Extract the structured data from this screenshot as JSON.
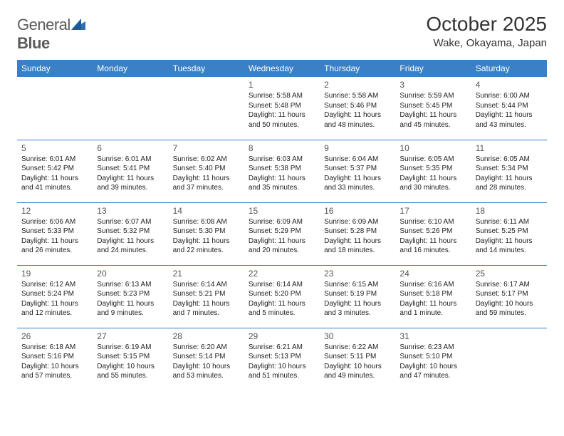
{
  "logo": {
    "word1": "General",
    "word2": "Blue"
  },
  "title": "October 2025",
  "location": "Wake, Okayama, Japan",
  "colors": {
    "header_bg": "#3b7fc4",
    "header_text": "#ffffff",
    "border": "#3b7fc4",
    "text": "#222222",
    "logo_text": "#5a5a5a",
    "logo_mark": "#2f6fb0"
  },
  "weekdays": [
    "Sunday",
    "Monday",
    "Tuesday",
    "Wednesday",
    "Thursday",
    "Friday",
    "Saturday"
  ],
  "weeks": [
    [
      null,
      null,
      null,
      {
        "n": "1",
        "sr": "Sunrise: 5:58 AM",
        "ss": "Sunset: 5:48 PM",
        "dl": "Daylight: 11 hours and 50 minutes."
      },
      {
        "n": "2",
        "sr": "Sunrise: 5:58 AM",
        "ss": "Sunset: 5:46 PM",
        "dl": "Daylight: 11 hours and 48 minutes."
      },
      {
        "n": "3",
        "sr": "Sunrise: 5:59 AM",
        "ss": "Sunset: 5:45 PM",
        "dl": "Daylight: 11 hours and 45 minutes."
      },
      {
        "n": "4",
        "sr": "Sunrise: 6:00 AM",
        "ss": "Sunset: 5:44 PM",
        "dl": "Daylight: 11 hours and 43 minutes."
      }
    ],
    [
      {
        "n": "5",
        "sr": "Sunrise: 6:01 AM",
        "ss": "Sunset: 5:42 PM",
        "dl": "Daylight: 11 hours and 41 minutes."
      },
      {
        "n": "6",
        "sr": "Sunrise: 6:01 AM",
        "ss": "Sunset: 5:41 PM",
        "dl": "Daylight: 11 hours and 39 minutes."
      },
      {
        "n": "7",
        "sr": "Sunrise: 6:02 AM",
        "ss": "Sunset: 5:40 PM",
        "dl": "Daylight: 11 hours and 37 minutes."
      },
      {
        "n": "8",
        "sr": "Sunrise: 6:03 AM",
        "ss": "Sunset: 5:38 PM",
        "dl": "Daylight: 11 hours and 35 minutes."
      },
      {
        "n": "9",
        "sr": "Sunrise: 6:04 AM",
        "ss": "Sunset: 5:37 PM",
        "dl": "Daylight: 11 hours and 33 minutes."
      },
      {
        "n": "10",
        "sr": "Sunrise: 6:05 AM",
        "ss": "Sunset: 5:35 PM",
        "dl": "Daylight: 11 hours and 30 minutes."
      },
      {
        "n": "11",
        "sr": "Sunrise: 6:05 AM",
        "ss": "Sunset: 5:34 PM",
        "dl": "Daylight: 11 hours and 28 minutes."
      }
    ],
    [
      {
        "n": "12",
        "sr": "Sunrise: 6:06 AM",
        "ss": "Sunset: 5:33 PM",
        "dl": "Daylight: 11 hours and 26 minutes."
      },
      {
        "n": "13",
        "sr": "Sunrise: 6:07 AM",
        "ss": "Sunset: 5:32 PM",
        "dl": "Daylight: 11 hours and 24 minutes."
      },
      {
        "n": "14",
        "sr": "Sunrise: 6:08 AM",
        "ss": "Sunset: 5:30 PM",
        "dl": "Daylight: 11 hours and 22 minutes."
      },
      {
        "n": "15",
        "sr": "Sunrise: 6:09 AM",
        "ss": "Sunset: 5:29 PM",
        "dl": "Daylight: 11 hours and 20 minutes."
      },
      {
        "n": "16",
        "sr": "Sunrise: 6:09 AM",
        "ss": "Sunset: 5:28 PM",
        "dl": "Daylight: 11 hours and 18 minutes."
      },
      {
        "n": "17",
        "sr": "Sunrise: 6:10 AM",
        "ss": "Sunset: 5:26 PM",
        "dl": "Daylight: 11 hours and 16 minutes."
      },
      {
        "n": "18",
        "sr": "Sunrise: 6:11 AM",
        "ss": "Sunset: 5:25 PM",
        "dl": "Daylight: 11 hours and 14 minutes."
      }
    ],
    [
      {
        "n": "19",
        "sr": "Sunrise: 6:12 AM",
        "ss": "Sunset: 5:24 PM",
        "dl": "Daylight: 11 hours and 12 minutes."
      },
      {
        "n": "20",
        "sr": "Sunrise: 6:13 AM",
        "ss": "Sunset: 5:23 PM",
        "dl": "Daylight: 11 hours and 9 minutes."
      },
      {
        "n": "21",
        "sr": "Sunrise: 6:14 AM",
        "ss": "Sunset: 5:21 PM",
        "dl": "Daylight: 11 hours and 7 minutes."
      },
      {
        "n": "22",
        "sr": "Sunrise: 6:14 AM",
        "ss": "Sunset: 5:20 PM",
        "dl": "Daylight: 11 hours and 5 minutes."
      },
      {
        "n": "23",
        "sr": "Sunrise: 6:15 AM",
        "ss": "Sunset: 5:19 PM",
        "dl": "Daylight: 11 hours and 3 minutes."
      },
      {
        "n": "24",
        "sr": "Sunrise: 6:16 AM",
        "ss": "Sunset: 5:18 PM",
        "dl": "Daylight: 11 hours and 1 minute."
      },
      {
        "n": "25",
        "sr": "Sunrise: 6:17 AM",
        "ss": "Sunset: 5:17 PM",
        "dl": "Daylight: 10 hours and 59 minutes."
      }
    ],
    [
      {
        "n": "26",
        "sr": "Sunrise: 6:18 AM",
        "ss": "Sunset: 5:16 PM",
        "dl": "Daylight: 10 hours and 57 minutes."
      },
      {
        "n": "27",
        "sr": "Sunrise: 6:19 AM",
        "ss": "Sunset: 5:15 PM",
        "dl": "Daylight: 10 hours and 55 minutes."
      },
      {
        "n": "28",
        "sr": "Sunrise: 6:20 AM",
        "ss": "Sunset: 5:14 PM",
        "dl": "Daylight: 10 hours and 53 minutes."
      },
      {
        "n": "29",
        "sr": "Sunrise: 6:21 AM",
        "ss": "Sunset: 5:13 PM",
        "dl": "Daylight: 10 hours and 51 minutes."
      },
      {
        "n": "30",
        "sr": "Sunrise: 6:22 AM",
        "ss": "Sunset: 5:11 PM",
        "dl": "Daylight: 10 hours and 49 minutes."
      },
      {
        "n": "31",
        "sr": "Sunrise: 6:23 AM",
        "ss": "Sunset: 5:10 PM",
        "dl": "Daylight: 10 hours and 47 minutes."
      },
      null
    ]
  ]
}
